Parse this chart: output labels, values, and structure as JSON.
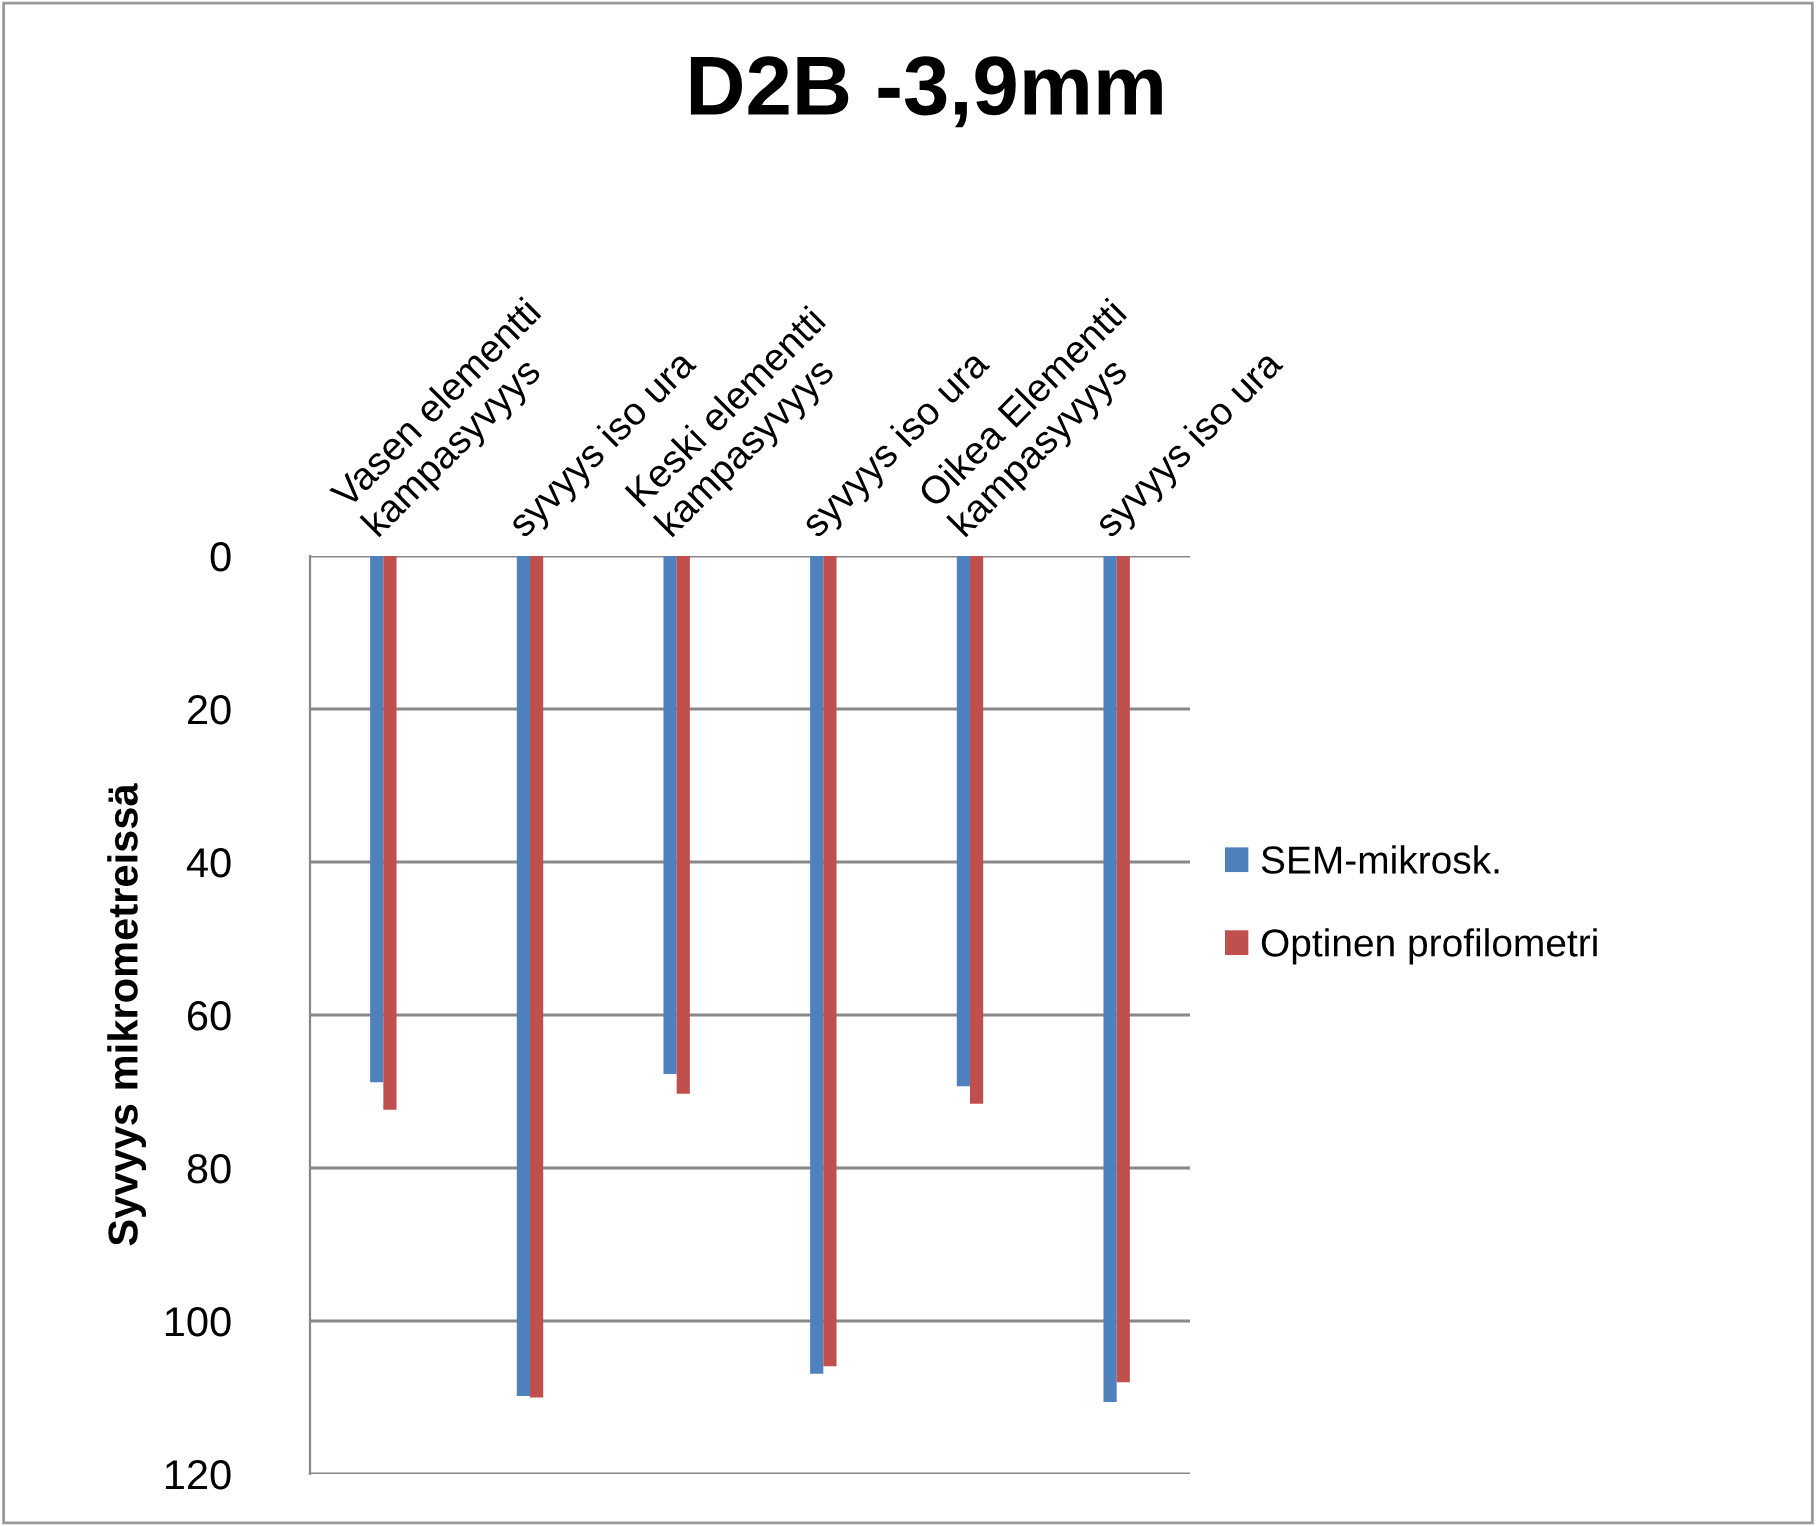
{
  "chart_data": {
    "type": "bar",
    "title": "D2B -3,9mm",
    "ylabel": "Syvyys mikrometreissä",
    "categories": [
      "Vasen elementti\nkampasyvyys",
      "syvyys iso ura",
      "Keski elementti\nkampasyvyys",
      "syvyys iso ura",
      "Oikea Elementti\nkampasyvyys",
      "syvyys iso ura"
    ],
    "series": [
      {
        "name": "SEM-mikrosk.",
        "color": "#4f81bd",
        "values": [
          68.8,
          109.8,
          67.7,
          106.9,
          69.3,
          110.6
        ]
      },
      {
        "name": "Optinen profilometri",
        "color": "#c0504d",
        "values": [
          72.4,
          110,
          70.3,
          105.9,
          71.6,
          108
        ]
      }
    ],
    "ylim": [
      120,
      0
    ],
    "yticks": [
      0,
      20,
      40,
      60,
      80,
      100,
      120
    ],
    "grid": "y",
    "legend": "right"
  }
}
